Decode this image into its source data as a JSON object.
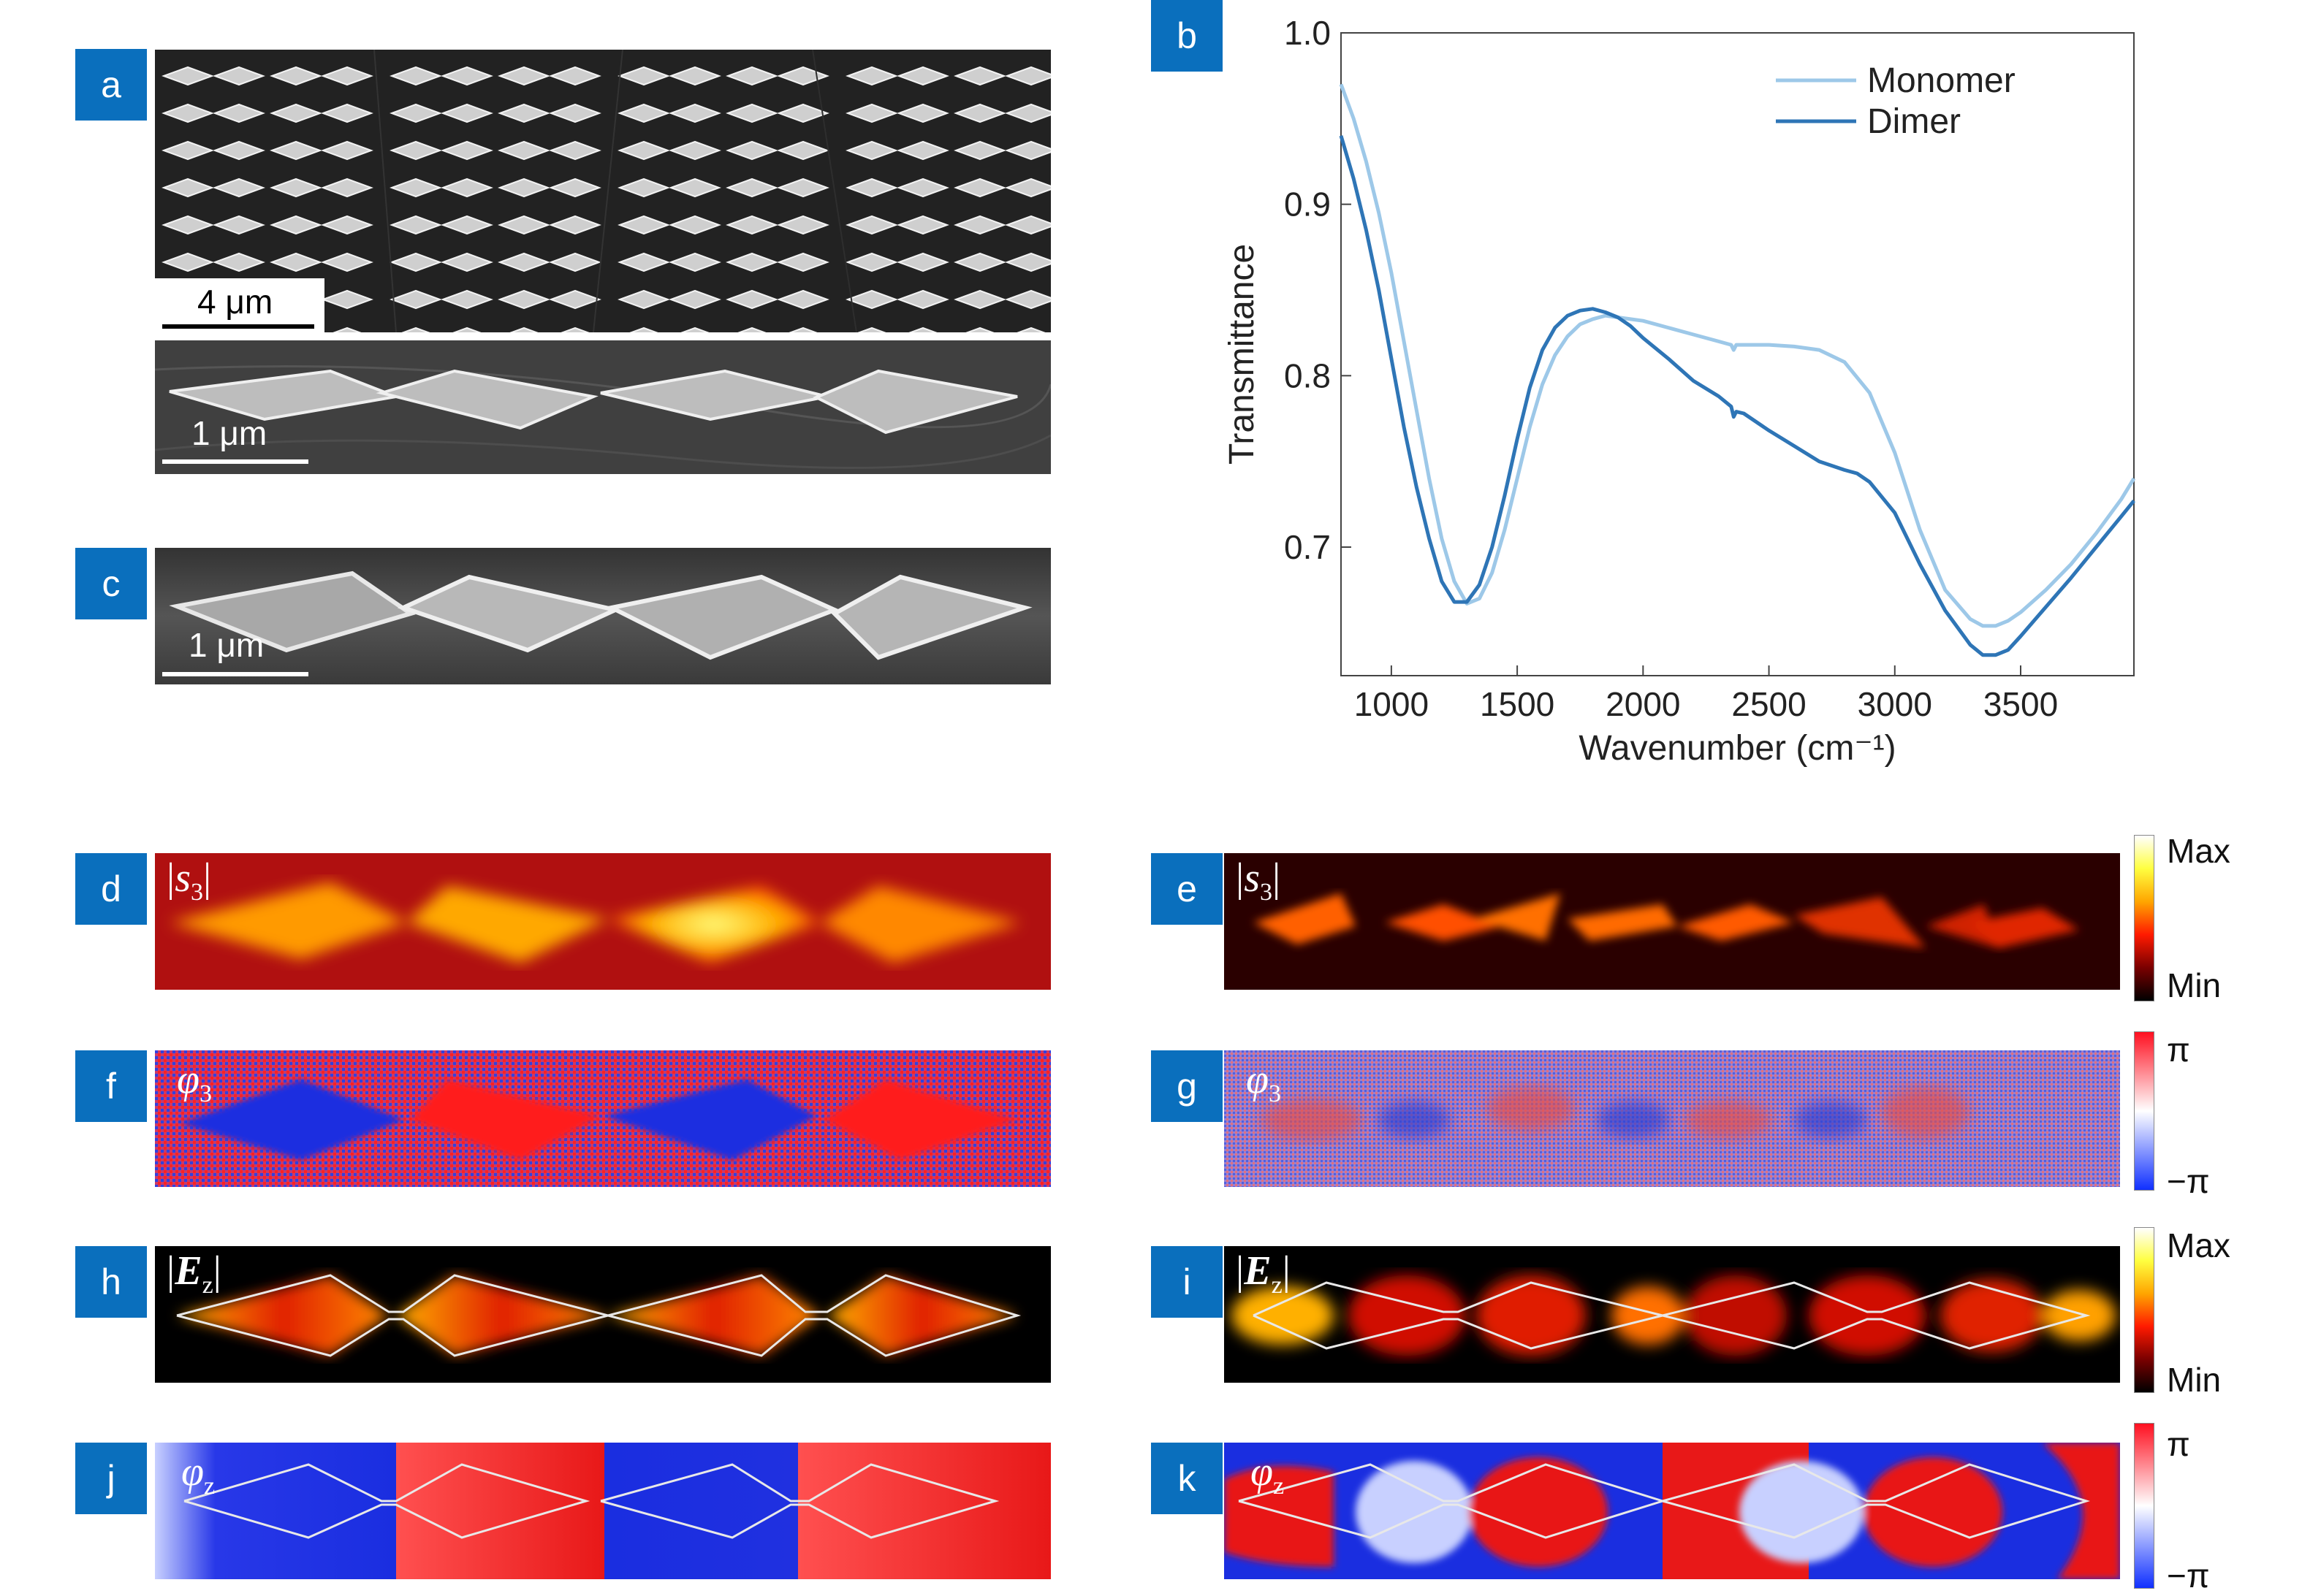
{
  "badges": {
    "a": "a",
    "b": "b",
    "c": "c",
    "d": "d",
    "e": "e",
    "f": "f",
    "g": "g",
    "h": "h",
    "i": "i",
    "j": "j",
    "k": "k"
  },
  "scalebars": {
    "a_top": "4 μm",
    "a_bottom": "1 μm",
    "c": "1 μm"
  },
  "panel_labels": {
    "s3_pre": "|",
    "s3_var": "s",
    "s3_sub": "3",
    "s3_post": "|",
    "phi3_var": "φ",
    "phi3_sub": "3",
    "ez_pre": "|",
    "ez_var": "E",
    "ez_sub": "z",
    "ez_post": "|",
    "phiz_var": "φ",
    "phiz_sub": "z"
  },
  "colorbars": {
    "amp_max": "Max",
    "amp_min": "Min",
    "phase_max": "π",
    "phase_min": "−π",
    "amp_colors": [
      "#000000",
      "#7a0000",
      "#ff1a00",
      "#ffa500",
      "#ffff40",
      "#ffffff"
    ],
    "phase_colors": [
      "#1030ff",
      "#ffffff",
      "#ff1020"
    ]
  },
  "chart_data": {
    "type": "line",
    "xlabel": "Wavenumber (cm⁻¹)",
    "ylabel": "Transmittance",
    "xlim": [
      800,
      3950
    ],
    "ylim": [
      0.625,
      1.0
    ],
    "xticks": [
      1000,
      1500,
      2000,
      2500,
      3000,
      3500
    ],
    "yticks": [
      0.7,
      0.8,
      0.9,
      1.0
    ],
    "ytick_labels": [
      "0.7",
      "0.8",
      "0.9",
      "1.0"
    ],
    "legend_position": "top-right",
    "series": [
      {
        "name": "Monomer",
        "color": "#9dc8e8",
        "x": [
          800,
          850,
          900,
          950,
          1000,
          1050,
          1100,
          1150,
          1200,
          1250,
          1300,
          1350,
          1400,
          1450,
          1500,
          1550,
          1600,
          1650,
          1700,
          1750,
          1800,
          1850,
          1900,
          1950,
          2000,
          2100,
          2200,
          2300,
          2350,
          2360,
          2370,
          2400,
          2500,
          2600,
          2700,
          2800,
          2900,
          3000,
          3100,
          3200,
          3300,
          3350,
          3400,
          3450,
          3500,
          3600,
          3700,
          3800,
          3900,
          3950
        ],
        "y": [
          0.97,
          0.95,
          0.925,
          0.895,
          0.86,
          0.82,
          0.78,
          0.74,
          0.705,
          0.68,
          0.667,
          0.67,
          0.685,
          0.71,
          0.74,
          0.77,
          0.795,
          0.812,
          0.823,
          0.83,
          0.833,
          0.835,
          0.834,
          0.833,
          0.832,
          0.828,
          0.824,
          0.82,
          0.818,
          0.815,
          0.818,
          0.818,
          0.818,
          0.817,
          0.815,
          0.808,
          0.79,
          0.755,
          0.71,
          0.675,
          0.658,
          0.654,
          0.654,
          0.657,
          0.662,
          0.675,
          0.69,
          0.708,
          0.728,
          0.74
        ]
      },
      {
        "name": "Dimer",
        "color": "#2e75b6",
        "x": [
          800,
          850,
          900,
          950,
          1000,
          1050,
          1100,
          1150,
          1200,
          1250,
          1300,
          1350,
          1400,
          1450,
          1500,
          1550,
          1600,
          1650,
          1700,
          1750,
          1800,
          1850,
          1900,
          1950,
          2000,
          2100,
          2200,
          2300,
          2350,
          2360,
          2370,
          2400,
          2500,
          2600,
          2700,
          2800,
          2850,
          2900,
          3000,
          3100,
          3200,
          3300,
          3350,
          3400,
          3450,
          3500,
          3600,
          3700,
          3800,
          3900,
          3950
        ],
        "y": [
          0.94,
          0.915,
          0.885,
          0.85,
          0.81,
          0.77,
          0.735,
          0.705,
          0.68,
          0.668,
          0.668,
          0.678,
          0.7,
          0.73,
          0.763,
          0.793,
          0.815,
          0.828,
          0.835,
          0.838,
          0.839,
          0.837,
          0.834,
          0.829,
          0.822,
          0.81,
          0.797,
          0.788,
          0.782,
          0.776,
          0.779,
          0.778,
          0.768,
          0.759,
          0.75,
          0.745,
          0.743,
          0.738,
          0.72,
          0.69,
          0.663,
          0.643,
          0.637,
          0.637,
          0.64,
          0.648,
          0.665,
          0.682,
          0.7,
          0.718,
          0.727
        ]
      }
    ]
  }
}
